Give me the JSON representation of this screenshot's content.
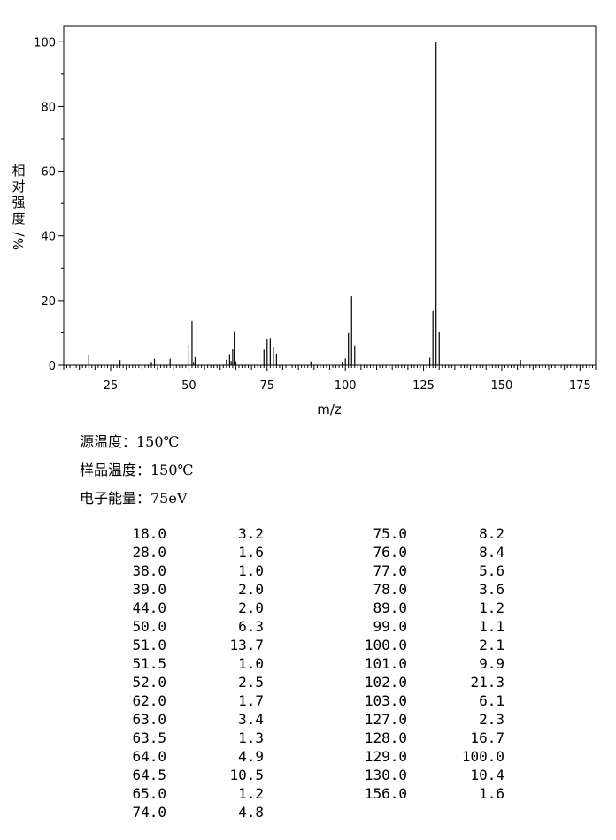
{
  "chart_data": {
    "type": "bar",
    "xlabel": "m/z",
    "ylabel": "相对强度/%",
    "xlim": [
      10,
      180
    ],
    "ylim": [
      0,
      105
    ],
    "xticks": [
      25,
      50,
      75,
      100,
      125,
      150,
      175
    ],
    "yticks": [
      0,
      20,
      40,
      60,
      80,
      100
    ],
    "grid": false,
    "peaks": [
      {
        "mz": 18.0,
        "intensity": 3.2
      },
      {
        "mz": 28.0,
        "intensity": 1.6
      },
      {
        "mz": 38.0,
        "intensity": 1.0
      },
      {
        "mz": 39.0,
        "intensity": 2.0
      },
      {
        "mz": 44.0,
        "intensity": 2.0
      },
      {
        "mz": 50.0,
        "intensity": 6.3
      },
      {
        "mz": 51.0,
        "intensity": 13.7
      },
      {
        "mz": 51.5,
        "intensity": 1.0
      },
      {
        "mz": 52.0,
        "intensity": 2.5
      },
      {
        "mz": 62.0,
        "intensity": 1.7
      },
      {
        "mz": 63.0,
        "intensity": 3.4
      },
      {
        "mz": 63.5,
        "intensity": 1.3
      },
      {
        "mz": 64.0,
        "intensity": 4.9
      },
      {
        "mz": 64.5,
        "intensity": 10.5
      },
      {
        "mz": 65.0,
        "intensity": 1.2
      },
      {
        "mz": 74.0,
        "intensity": 4.8
      },
      {
        "mz": 75.0,
        "intensity": 8.2
      },
      {
        "mz": 76.0,
        "intensity": 8.4
      },
      {
        "mz": 77.0,
        "intensity": 5.6
      },
      {
        "mz": 78.0,
        "intensity": 3.6
      },
      {
        "mz": 89.0,
        "intensity": 1.2
      },
      {
        "mz": 99.0,
        "intensity": 1.1
      },
      {
        "mz": 100.0,
        "intensity": 2.1
      },
      {
        "mz": 101.0,
        "intensity": 9.9
      },
      {
        "mz": 102.0,
        "intensity": 21.3
      },
      {
        "mz": 103.0,
        "intensity": 6.1
      },
      {
        "mz": 127.0,
        "intensity": 2.3
      },
      {
        "mz": 128.0,
        "intensity": 16.7
      },
      {
        "mz": 129.0,
        "intensity": 100.0
      },
      {
        "mz": 130.0,
        "intensity": 10.4
      },
      {
        "mz": 156.0,
        "intensity": 1.6
      }
    ]
  },
  "conditions": {
    "source_temp": "源温度：150℃",
    "sample_temp": "样品温度：150℃",
    "electron_energy": "电子能量：75eV"
  },
  "peak_table": {
    "left": [
      {
        "mz": "18.0",
        "intensity": "3.2"
      },
      {
        "mz": "28.0",
        "intensity": "1.6"
      },
      {
        "mz": "38.0",
        "intensity": "1.0"
      },
      {
        "mz": "39.0",
        "intensity": "2.0"
      },
      {
        "mz": "44.0",
        "intensity": "2.0"
      },
      {
        "mz": "50.0",
        "intensity": "6.3"
      },
      {
        "mz": "51.0",
        "intensity": "13.7"
      },
      {
        "mz": "51.5",
        "intensity": "1.0"
      },
      {
        "mz": "52.0",
        "intensity": "2.5"
      },
      {
        "mz": "62.0",
        "intensity": "1.7"
      },
      {
        "mz": "63.0",
        "intensity": "3.4"
      },
      {
        "mz": "63.5",
        "intensity": "1.3"
      },
      {
        "mz": "64.0",
        "intensity": "4.9"
      },
      {
        "mz": "64.5",
        "intensity": "10.5"
      },
      {
        "mz": "65.0",
        "intensity": "1.2"
      },
      {
        "mz": "74.0",
        "intensity": "4.8"
      }
    ],
    "right": [
      {
        "mz": "75.0",
        "intensity": "8.2"
      },
      {
        "mz": "76.0",
        "intensity": "8.4"
      },
      {
        "mz": "77.0",
        "intensity": "5.6"
      },
      {
        "mz": "78.0",
        "intensity": "3.6"
      },
      {
        "mz": "89.0",
        "intensity": "1.2"
      },
      {
        "mz": "99.0",
        "intensity": "1.1"
      },
      {
        "mz": "100.0",
        "intensity": "2.1"
      },
      {
        "mz": "101.0",
        "intensity": "9.9"
      },
      {
        "mz": "102.0",
        "intensity": "21.3"
      },
      {
        "mz": "103.0",
        "intensity": "6.1"
      },
      {
        "mz": "127.0",
        "intensity": "2.3"
      },
      {
        "mz": "128.0",
        "intensity": "16.7"
      },
      {
        "mz": "129.0",
        "intensity": "100.0"
      },
      {
        "mz": "130.0",
        "intensity": "10.4"
      },
      {
        "mz": "156.0",
        "intensity": "1.6"
      }
    ]
  }
}
